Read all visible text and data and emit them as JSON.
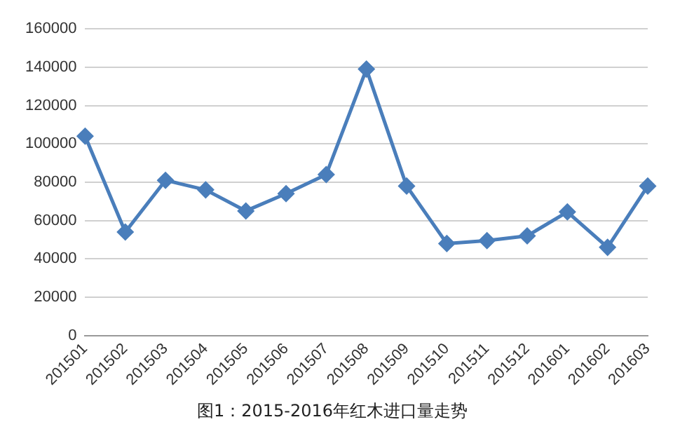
{
  "chart_data": {
    "type": "line",
    "title": "图1：2015-2016年红木进口量走势",
    "categories": [
      "201501",
      "201502",
      "201503",
      "201504",
      "201505",
      "201506",
      "201507",
      "201508",
      "201509",
      "201510",
      "201511",
      "201512",
      "201601",
      "201602",
      "201603"
    ],
    "series": [
      {
        "color": "#4a7ebb",
        "values": [
          104000,
          54000,
          81000,
          76000,
          65000,
          74000,
          84000,
          139000,
          78000,
          48000,
          49500,
          52000,
          64500,
          46000,
          78000
        ]
      }
    ],
    "ylim": [
      0,
      160000
    ],
    "yticks": [
      0,
      20000,
      40000,
      60000,
      80000,
      100000,
      120000,
      140000,
      160000
    ],
    "grid": "y",
    "legend": false,
    "marker": "diamond",
    "line_style": "solid"
  }
}
